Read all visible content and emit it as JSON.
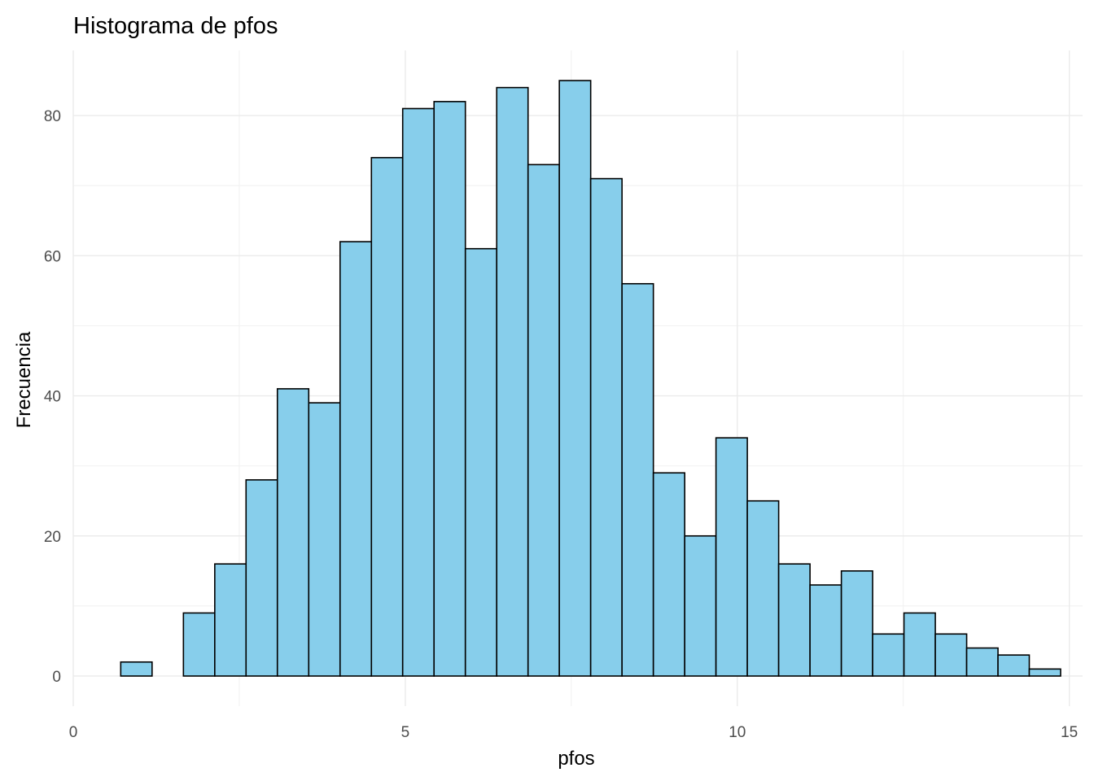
{
  "chart_data": {
    "type": "bar",
    "title": "Histograma de pfos",
    "xlabel": "pfos",
    "ylabel": "Frecuencia",
    "bin_width": 0.4718,
    "bins": [
      {
        "start": 0.715,
        "end": 1.187,
        "count": 2
      },
      {
        "start": 1.187,
        "end": 1.659,
        "count": 0
      },
      {
        "start": 1.659,
        "end": 2.131,
        "count": 9
      },
      {
        "start": 2.131,
        "end": 2.602,
        "count": 16
      },
      {
        "start": 2.602,
        "end": 3.074,
        "count": 28
      },
      {
        "start": 3.074,
        "end": 3.546,
        "count": 41
      },
      {
        "start": 3.546,
        "end": 4.018,
        "count": 39
      },
      {
        "start": 4.018,
        "end": 4.49,
        "count": 62
      },
      {
        "start": 4.49,
        "end": 4.961,
        "count": 74
      },
      {
        "start": 4.961,
        "end": 5.433,
        "count": 81
      },
      {
        "start": 5.433,
        "end": 5.905,
        "count": 82
      },
      {
        "start": 5.905,
        "end": 6.377,
        "count": 61
      },
      {
        "start": 6.377,
        "end": 6.849,
        "count": 84
      },
      {
        "start": 6.849,
        "end": 7.32,
        "count": 73
      },
      {
        "start": 7.32,
        "end": 7.792,
        "count": 85
      },
      {
        "start": 7.792,
        "end": 8.264,
        "count": 71
      },
      {
        "start": 8.264,
        "end": 8.736,
        "count": 56
      },
      {
        "start": 8.736,
        "end": 9.208,
        "count": 29
      },
      {
        "start": 9.208,
        "end": 9.679,
        "count": 20
      },
      {
        "start": 9.679,
        "end": 10.151,
        "count": 34
      },
      {
        "start": 10.151,
        "end": 10.623,
        "count": 25
      },
      {
        "start": 10.623,
        "end": 11.095,
        "count": 16
      },
      {
        "start": 11.095,
        "end": 11.567,
        "count": 13
      },
      {
        "start": 11.567,
        "end": 12.038,
        "count": 15
      },
      {
        "start": 12.038,
        "end": 12.51,
        "count": 6
      },
      {
        "start": 12.51,
        "end": 12.982,
        "count": 9
      },
      {
        "start": 12.982,
        "end": 13.454,
        "count": 6
      },
      {
        "start": 13.454,
        "end": 13.926,
        "count": 4
      },
      {
        "start": 13.926,
        "end": 14.397,
        "count": 3
      },
      {
        "start": 14.397,
        "end": 14.869,
        "count": 1
      }
    ],
    "xlim": [
      0,
      15.2
    ],
    "ylim": [
      -4.3,
      89.3
    ],
    "x_ticks": [
      0,
      5,
      10,
      15
    ],
    "x_tick_labels": [
      "0",
      "5",
      "10",
      "15"
    ],
    "x_minor_ticks": [
      2.5,
      7.5,
      12.5
    ],
    "y_ticks": [
      0,
      20,
      40,
      60,
      80
    ],
    "y_tick_labels": [
      "0",
      "20",
      "40",
      "60",
      "80"
    ],
    "y_minor_ticks": [
      10,
      30,
      50,
      70
    ],
    "grid": true,
    "legend": "none",
    "bar_fill": "#87ceeb",
    "bar_outline": "#000000",
    "grid_color": "#ebebeb",
    "background": "#ffffff"
  }
}
